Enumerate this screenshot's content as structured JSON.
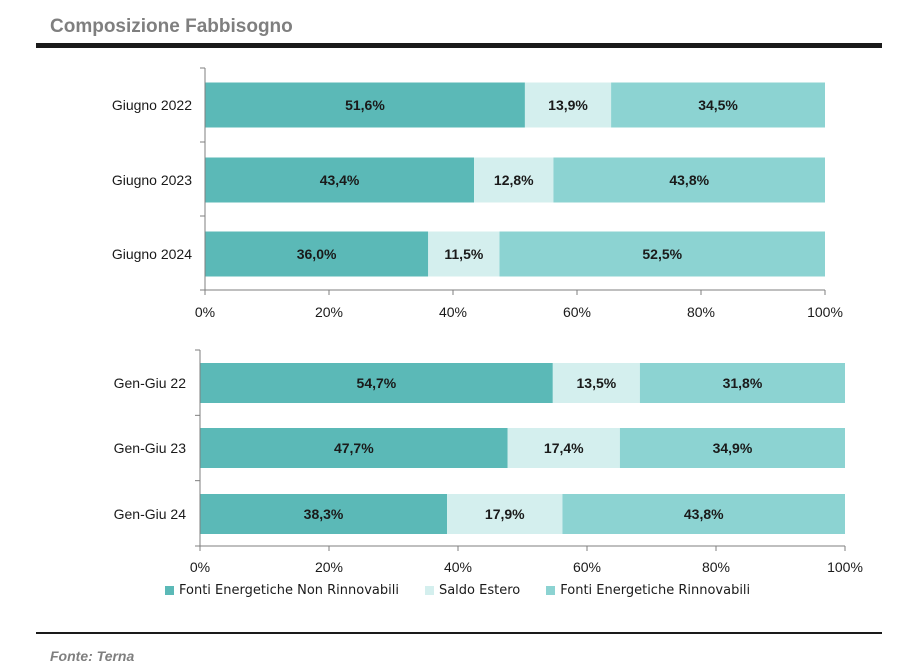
{
  "title": "Composizione Fabbisogno",
  "source": "Fonte: Terna",
  "colors": {
    "non_rinnovabili": "#5bb9b7",
    "saldo_estero": "#d4efee",
    "rinnovabili": "#8cd3d2"
  },
  "legend": [
    {
      "label": "Fonti Energetiche Non Rinnovabili",
      "color": "#5bb9b7"
    },
    {
      "label": "Saldo Estero",
      "color": "#d4efee"
    },
    {
      "label": "Fonti Energetiche Rinnovabili",
      "color": "#8cd3d2"
    }
  ],
  "chart_data": [
    {
      "type": "bar",
      "stacked": true,
      "orientation": "horizontal",
      "categories": [
        "Giugno 2022",
        "Giugno 2023",
        "Giugno 2024"
      ],
      "series": [
        {
          "name": "Fonti Energetiche Non Rinnovabili",
          "values": [
            51.6,
            43.4,
            36.0
          ],
          "labels": [
            "51,6%",
            "43,4%",
            "36,0%"
          ]
        },
        {
          "name": "Saldo Estero",
          "values": [
            13.9,
            12.8,
            11.5
          ],
          "labels": [
            "13,9%",
            "12,8%",
            "11,5%"
          ]
        },
        {
          "name": "Fonti Energetiche Rinnovabili",
          "values": [
            34.5,
            43.8,
            52.5
          ],
          "labels": [
            "34,5%",
            "43,8%",
            "52,5%"
          ]
        }
      ],
      "xlim": [
        0,
        100
      ],
      "xticks": [
        "0%",
        "20%",
        "40%",
        "60%",
        "80%",
        "100%"
      ],
      "grid": false
    },
    {
      "type": "bar",
      "stacked": true,
      "orientation": "horizontal",
      "categories": [
        "Gen-Giu 22",
        "Gen-Giu 23",
        "Gen-Giu 24"
      ],
      "series": [
        {
          "name": "Fonti Energetiche Non Rinnovabili",
          "values": [
            54.7,
            47.7,
            38.3
          ],
          "labels": [
            "54,7%",
            "47,7%",
            "38,3%"
          ]
        },
        {
          "name": "Saldo Estero",
          "values": [
            13.5,
            17.4,
            17.9
          ],
          "labels": [
            "13,5%",
            "17,4%",
            "17,9%"
          ]
        },
        {
          "name": "Fonti Energetiche Rinnovabili",
          "values": [
            31.8,
            34.9,
            43.8
          ],
          "labels": [
            "31,8%",
            "34,9%",
            "43,8%"
          ]
        }
      ],
      "xlim": [
        0,
        100
      ],
      "xticks": [
        "0%",
        "20%",
        "40%",
        "60%",
        "80%",
        "100%"
      ],
      "grid": false,
      "legend_position": "bottom"
    }
  ]
}
